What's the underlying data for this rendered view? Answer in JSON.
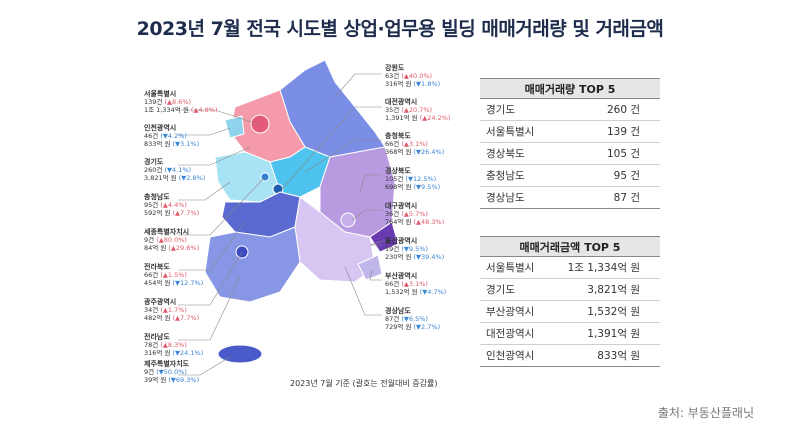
{
  "title": "2023년 7월 전국 시도별 상업·업무용 빌딩 매매거래량 및 거래금액",
  "base_note": "2023년 7월 기준 (괄호는 전월대비 증감률)",
  "source": "출처: 부동산플래닛",
  "colors": {
    "title": "#1f2d4d",
    "up": "#e05a6a",
    "down": "#3a84d4",
    "sea_map_seoul": "#f39aa8"
  },
  "regions": [
    {
      "id": "seoul",
      "name": "서울특별시",
      "count": "139건",
      "count_chg": "(▲8.6%)",
      "count_dir": "up",
      "amount": "1조 1,334억 원",
      "amount_chg": "(▲4.8%)",
      "amount_dir": "up"
    },
    {
      "id": "incheon",
      "name": "인천광역시",
      "count": "46건",
      "count_chg": "(▼4.2%)",
      "count_dir": "dn",
      "amount": "833억 원",
      "amount_chg": "(▼3.1%)",
      "amount_dir": "dn"
    },
    {
      "id": "gyeonggi",
      "name": "경기도",
      "count": "260건",
      "count_chg": "(▼4.1%)",
      "count_dir": "dn",
      "amount": "3,821억 원",
      "amount_chg": "(▼2.8%)",
      "amount_dir": "dn"
    },
    {
      "id": "chungnam",
      "name": "충청남도",
      "count": "95건",
      "count_chg": "(▲4.4%)",
      "count_dir": "up",
      "amount": "592억 원",
      "amount_chg": "(▲7.7%)",
      "amount_dir": "up"
    },
    {
      "id": "sejong",
      "name": "세종특별자치시",
      "count": "9건",
      "count_chg": "(▲80.0%)",
      "count_dir": "up",
      "amount": "84억 원",
      "amount_chg": "(▲29.6%)",
      "amount_dir": "up"
    },
    {
      "id": "jeonbuk",
      "name": "전라북도",
      "count": "66건",
      "count_chg": "(▲1.5%)",
      "count_dir": "up",
      "amount": "454억 원",
      "amount_chg": "(▼12.7%)",
      "amount_dir": "dn"
    },
    {
      "id": "gwangju",
      "name": "광주광역시",
      "count": "34건",
      "count_chg": "(▲1.7%)",
      "count_dir": "up",
      "amount": "482억 원",
      "amount_chg": "(▲7.7%)",
      "amount_dir": "up"
    },
    {
      "id": "jeonnam",
      "name": "전라남도",
      "count": "78건",
      "count_chg": "(▲8.3%)",
      "count_dir": "up",
      "amount": "316억 원",
      "amount_chg": "(▼24.1%)",
      "amount_dir": "dn"
    },
    {
      "id": "jeju",
      "name": "제주특별자치도",
      "count": "9건",
      "count_chg": "(▼50.0%)",
      "count_dir": "dn",
      "amount": "39억 원",
      "amount_chg": "(▼69.3%)",
      "amount_dir": "dn"
    },
    {
      "id": "gangwon",
      "name": "강원도",
      "count": "63건",
      "count_chg": "(▲40.0%)",
      "count_dir": "up",
      "amount": "316억 원",
      "amount_chg": "(▼1.8%)",
      "amount_dir": "dn"
    },
    {
      "id": "daejeon",
      "name": "대전광역시",
      "count": "35건",
      "count_chg": "(▲20.7%)",
      "count_dir": "up",
      "amount": "1,391억 원",
      "amount_chg": "(▲24.2%)",
      "amount_dir": "up"
    },
    {
      "id": "chungbuk",
      "name": "충청북도",
      "count": "66건",
      "count_chg": "(▲3.1%)",
      "count_dir": "up",
      "amount": "368억 원",
      "amount_chg": "(▼26.4%)",
      "amount_dir": "dn"
    },
    {
      "id": "gyeongbuk",
      "name": "경상북도",
      "count": "105건",
      "count_chg": "(▼12.5%)",
      "count_dir": "dn",
      "amount": "698억 원",
      "amount_chg": "(▼9.5%)",
      "amount_dir": "dn"
    },
    {
      "id": "daegu",
      "name": "대구광역시",
      "count": "36건",
      "count_chg": "(▲5.7%)",
      "count_dir": "up",
      "amount": "764억 원",
      "amount_chg": "(▲48.3%)",
      "amount_dir": "up"
    },
    {
      "id": "ulsan",
      "name": "울산광역시",
      "count": "19건",
      "count_chg": "(▼9.5%)",
      "count_dir": "dn",
      "amount": "230억 원",
      "amount_chg": "(▼39.4%)",
      "amount_dir": "dn"
    },
    {
      "id": "busan",
      "name": "부산광역시",
      "count": "66건",
      "count_chg": "(▲3.1%)",
      "count_dir": "up",
      "amount": "1,532억 원",
      "amount_chg": "(▼4.7%)",
      "amount_dir": "dn"
    },
    {
      "id": "gyeongnam",
      "name": "경상남도",
      "count": "87건",
      "count_chg": "(▼6.5%)",
      "count_dir": "dn",
      "amount": "729억 원",
      "amount_chg": "(▼2.7%)",
      "amount_dir": "dn"
    }
  ],
  "volume_top5": {
    "header": "매매거래량 TOP 5",
    "rows": [
      {
        "name": "경기도",
        "value": "260 건"
      },
      {
        "name": "서울특별시",
        "value": "139 건"
      },
      {
        "name": "경상북도",
        "value": "105 건"
      },
      {
        "name": "충청남도",
        "value": "95 건"
      },
      {
        "name": "경상남도",
        "value": "87 건"
      }
    ]
  },
  "amount_top5": {
    "header": "매매거래금액 TOP 5",
    "rows": [
      {
        "name": "서울특별시",
        "value": "1조 1,334억 원"
      },
      {
        "name": "경기도",
        "value": "3,821억 원"
      },
      {
        "name": "부산광역시",
        "value": "1,532억 원"
      },
      {
        "name": "대전광역시",
        "value": "1,391억 원"
      },
      {
        "name": "인천광역시",
        "value": "833억 원"
      }
    ]
  }
}
